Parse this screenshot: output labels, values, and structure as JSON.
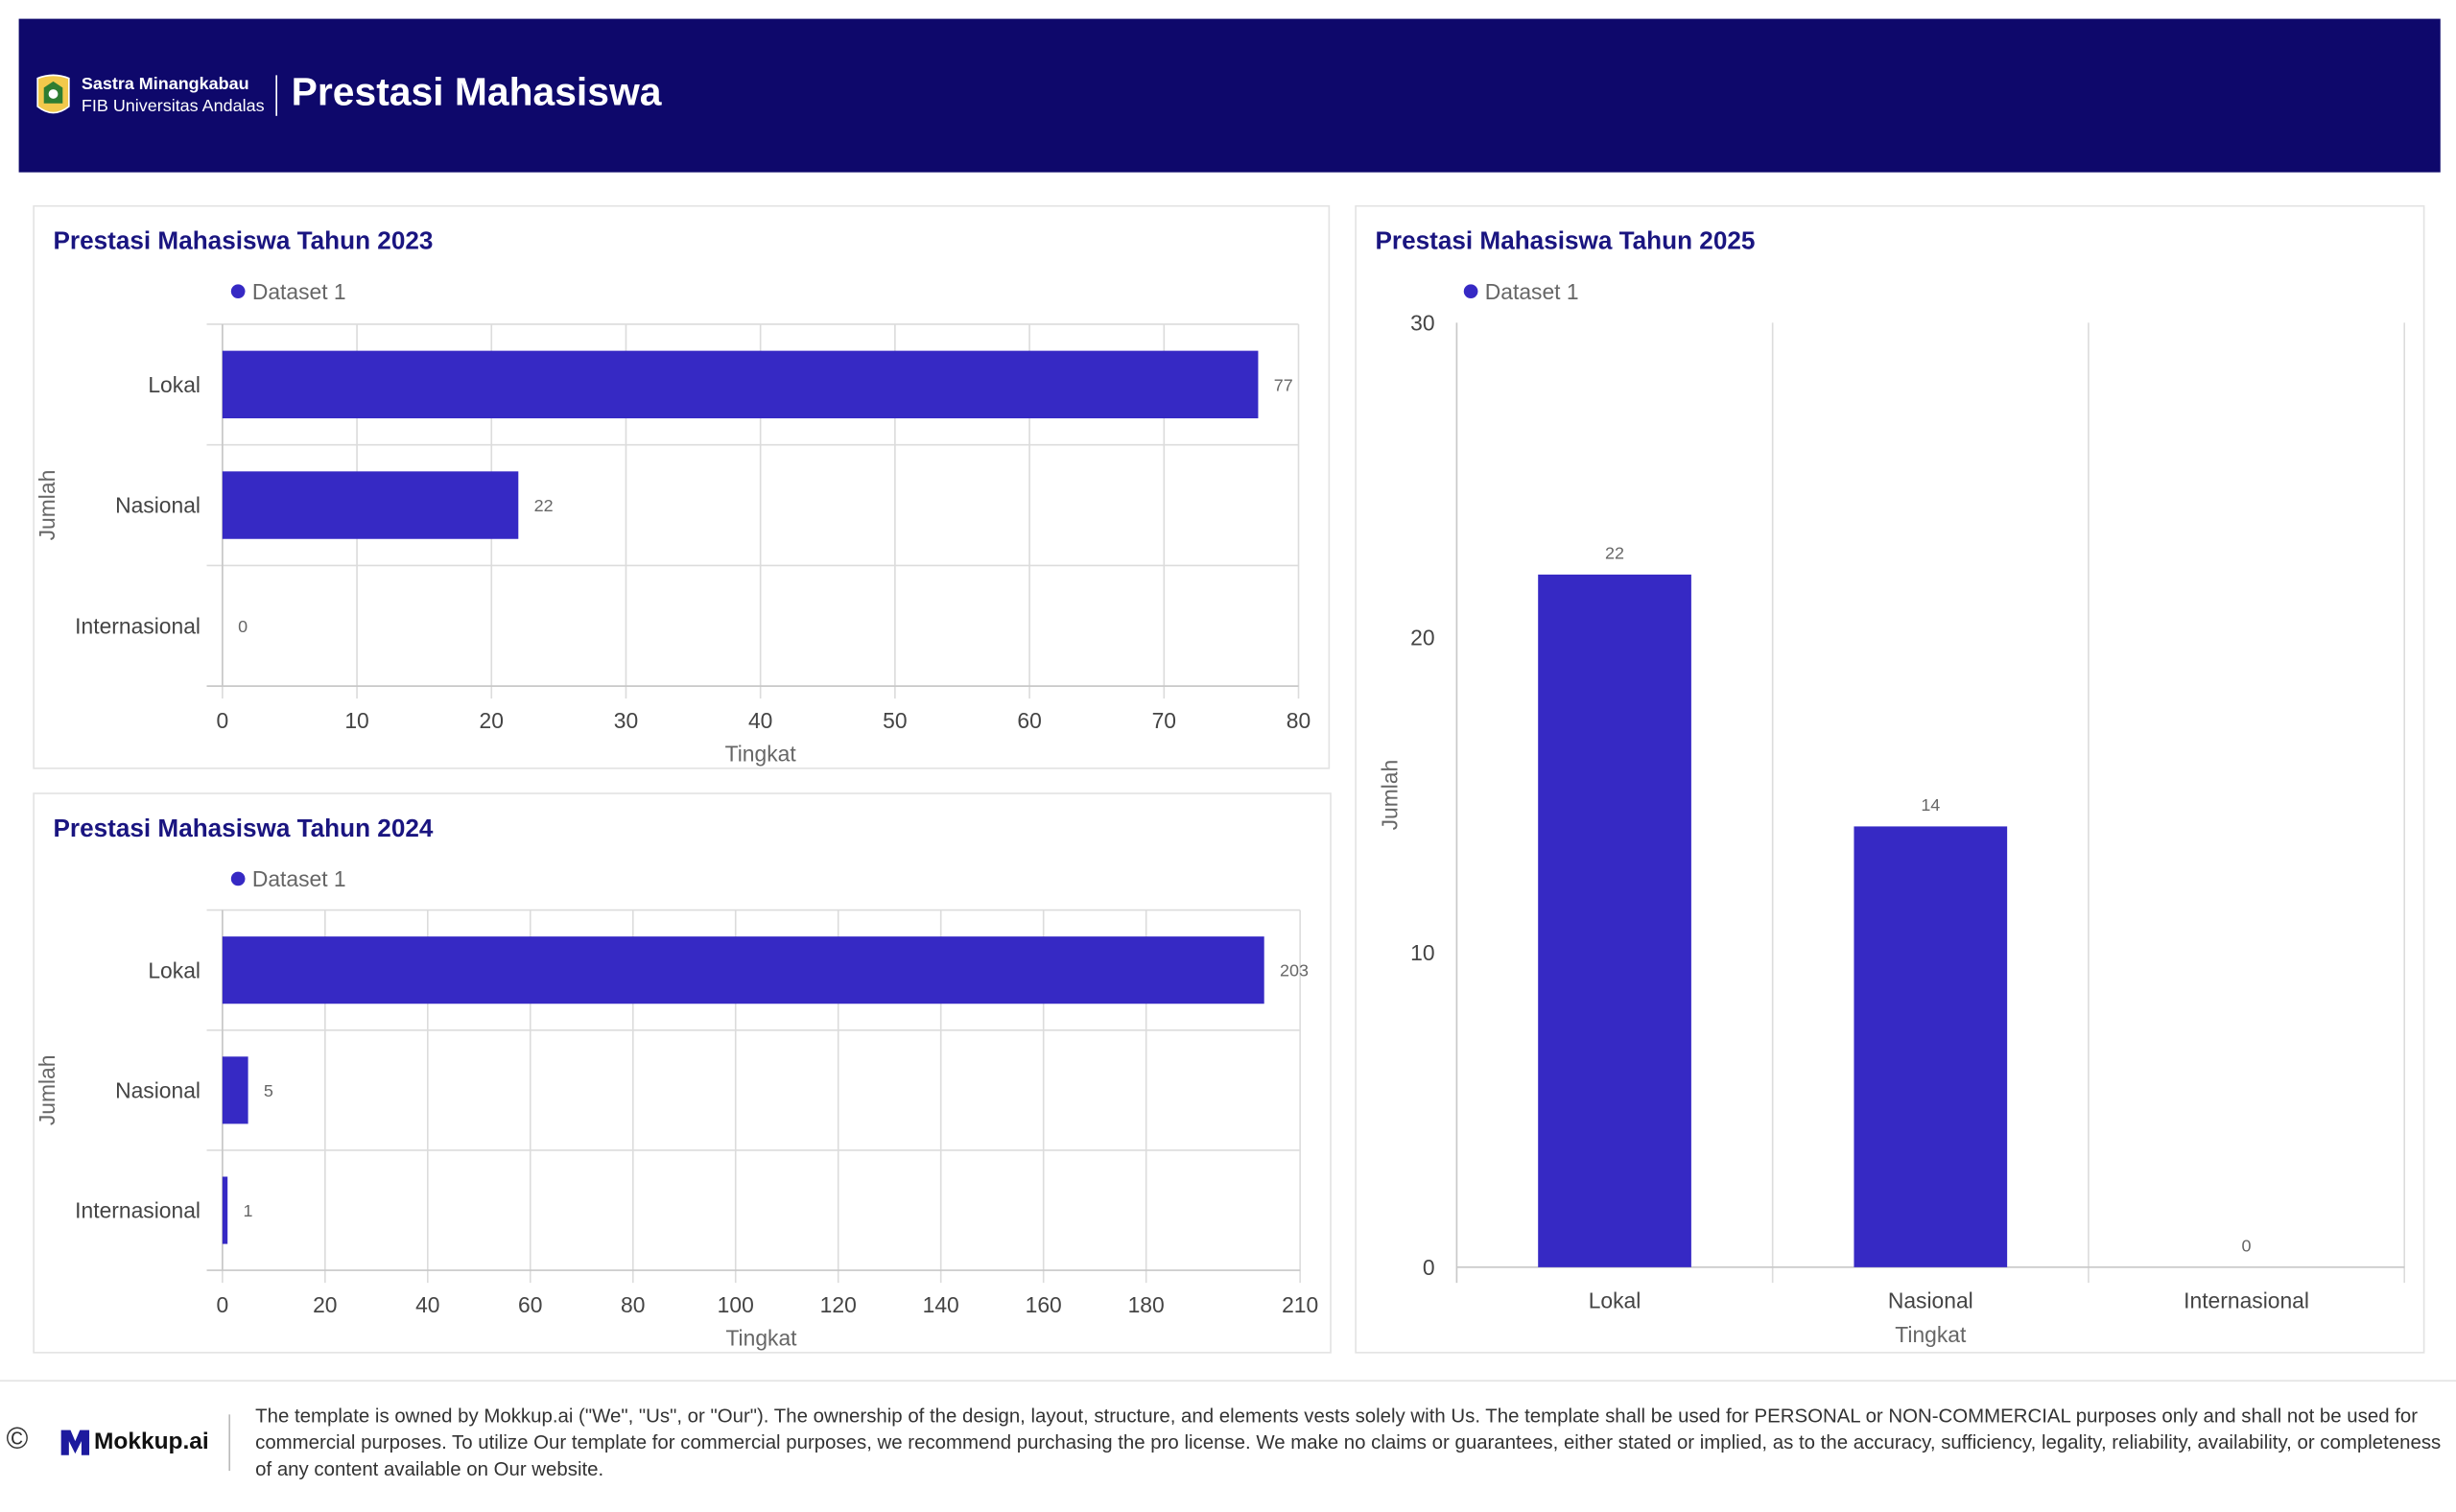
{
  "header": {
    "brand_line1": "Sastra Minangkabau",
    "brand_line2": "FIB Universitas Andalas",
    "title": "Prestasi Mahasiswa"
  },
  "colors": {
    "header_bg": "#0e086b",
    "bar": "#3629c4",
    "title": "#1a1580"
  },
  "chart_data": [
    {
      "type": "bar",
      "orientation": "horizontal",
      "title": "Prestasi Mahasiswa Tahun 2023",
      "categories": [
        "Lokal",
        "Nasional",
        "Internasional"
      ],
      "series": [
        {
          "name": "Dataset 1",
          "values": [
            77,
            22,
            0
          ]
        }
      ],
      "xlabel": "Tingkat",
      "ylabel": "Jumlah",
      "xlim": [
        0,
        80
      ],
      "ticks": [
        0,
        10,
        20,
        30,
        40,
        50,
        60,
        70,
        80
      ],
      "legend": "top-left",
      "grid": true
    },
    {
      "type": "bar",
      "orientation": "horizontal",
      "title": "Prestasi Mahasiswa Tahun 2024",
      "categories": [
        "Lokal",
        "Nasional",
        "Internasional"
      ],
      "series": [
        {
          "name": "Dataset 1",
          "values": [
            203,
            5,
            1
          ]
        }
      ],
      "xlabel": "Tingkat",
      "ylabel": "Jumlah",
      "xlim": [
        0,
        210
      ],
      "ticks": [
        0,
        20,
        40,
        60,
        80,
        100,
        120,
        140,
        160,
        180,
        210
      ],
      "legend": "top-left",
      "grid": true
    },
    {
      "type": "bar",
      "orientation": "vertical",
      "title": "Prestasi Mahasiswa Tahun 2025",
      "categories": [
        "Lokal",
        "Nasional",
        "Internasional"
      ],
      "series": [
        {
          "name": "Dataset 1",
          "values": [
            22,
            14,
            0
          ]
        }
      ],
      "xlabel": "Tingkat",
      "ylabel": "Jumlah",
      "ylim": [
        0,
        30
      ],
      "ticks": [
        0,
        10,
        20,
        30
      ],
      "legend": "top-left",
      "grid": true
    }
  ],
  "footer": {
    "copyright_symbol": "©",
    "brand": "Mokkup.ai",
    "disclaimer": "The template is owned by Mokkup.ai (\"We\", \"Us\", or \"Our\"). The ownership of the design, layout, structure, and elements vests solely with Us. The template shall be used for PERSONAL or NON-COMMERCIAL purposes only and shall not be used for commercial purposes. To utilize Our template for commercial purposes, we recommend purchasing the pro license. We make no claims or guarantees, either stated or implied, as to the accuracy, sufficiency, legality, reliability, availability, or completeness of any content available on Our website."
  }
}
